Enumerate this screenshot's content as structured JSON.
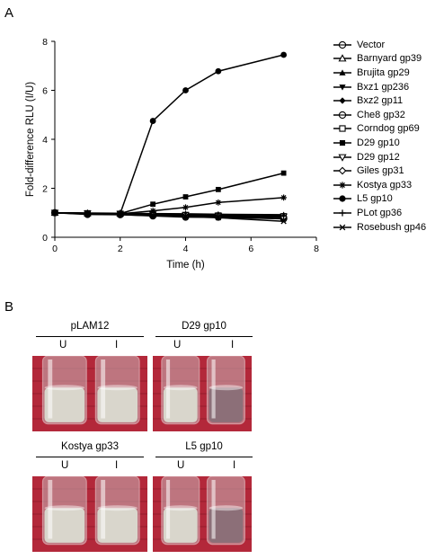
{
  "panel_a_label": "A",
  "panel_b_label": "B",
  "chart_data": {
    "type": "line",
    "title": "",
    "xlabel": "Time (h)",
    "ylabel": "Fold-difference RLU  (I/U)",
    "xlim": [
      0,
      8
    ],
    "ylim": [
      0,
      8
    ],
    "xticks": [
      0,
      2,
      4,
      6,
      8
    ],
    "yticks": [
      0,
      2,
      4,
      6,
      8
    ],
    "grid": false,
    "legend_position": "right",
    "x": [
      0,
      1,
      2,
      3,
      4,
      5,
      7
    ],
    "series": [
      {
        "name": "Vector",
        "marker": "open-circle",
        "values": [
          1.0,
          0.93,
          0.92,
          0.87,
          0.82,
          0.82,
          0.75
        ]
      },
      {
        "name": "Barnyard gp39",
        "marker": "open-triangle",
        "values": [
          1.0,
          0.98,
          0.97,
          0.95,
          0.92,
          0.9,
          0.87
        ]
      },
      {
        "name": "Brujita gp29",
        "marker": "filled-triangle",
        "values": [
          1.0,
          0.99,
          0.98,
          0.97,
          0.96,
          0.94,
          0.92
        ]
      },
      {
        "name": "Bxz1 gp236",
        "marker": "filled-triangle-down",
        "values": [
          1.0,
          0.97,
          0.95,
          0.92,
          0.9,
          0.88,
          0.85
        ]
      },
      {
        "name": "Bxz2 gp11",
        "marker": "filled-diamond",
        "values": [
          1.0,
          0.96,
          0.94,
          0.9,
          0.88,
          0.86,
          0.83
        ]
      },
      {
        "name": "Che8 gp32",
        "marker": "open-circle-bar",
        "values": [
          1.0,
          0.95,
          0.93,
          0.89,
          0.86,
          0.84,
          0.8
        ]
      },
      {
        "name": "Corndog gp69",
        "marker": "open-square",
        "values": [
          1.0,
          0.98,
          0.96,
          0.93,
          0.91,
          0.89,
          0.86
        ]
      },
      {
        "name": "D29 gp10",
        "marker": "filled-square",
        "values": [
          1.0,
          0.98,
          0.97,
          1.35,
          1.65,
          1.95,
          2.62
        ]
      },
      {
        "name": "D29 gp12",
        "marker": "open-triangle-down",
        "values": [
          1.0,
          0.97,
          0.96,
          0.93,
          0.91,
          0.88,
          0.85
        ]
      },
      {
        "name": "Giles gp31",
        "marker": "open-diamond",
        "values": [
          1.0,
          0.96,
          0.94,
          0.91,
          0.88,
          0.86,
          0.82
        ]
      },
      {
        "name": "Kostya gp33",
        "marker": "asterisk",
        "values": [
          1.0,
          0.98,
          0.96,
          1.08,
          1.22,
          1.42,
          1.62
        ]
      },
      {
        "name": "L5 gp10",
        "marker": "filled-circle",
        "values": [
          1.0,
          0.98,
          0.97,
          4.75,
          6.0,
          6.78,
          7.45
        ]
      },
      {
        "name": "PLot gp36",
        "marker": "plus",
        "values": [
          1.0,
          0.97,
          0.95,
          0.92,
          0.9,
          0.88,
          0.86
        ]
      },
      {
        "name": "Rosebush gp46",
        "marker": "cross",
        "values": [
          1.0,
          0.95,
          0.92,
          0.88,
          0.84,
          0.8,
          0.65
        ]
      }
    ]
  },
  "photos": [
    {
      "title": "pLAM12",
      "u_label": "U",
      "i_label": "I",
      "u_state": "turbid",
      "i_state": "turbid"
    },
    {
      "title": "D29 gp10",
      "u_label": "U",
      "i_label": "I",
      "u_state": "turbid",
      "i_state": "clear"
    },
    {
      "title": "Kostya gp33",
      "u_label": "U",
      "i_label": "I",
      "u_state": "turbid",
      "i_state": "turbid"
    },
    {
      "title": "L5 gp10",
      "u_label": "U",
      "i_label": "I",
      "u_state": "turbid",
      "i_state": "clear"
    }
  ],
  "colors": {
    "background": "#b3283a",
    "turbid": "#d9d6cc",
    "clear": "#8c6f78",
    "line": "#000000"
  }
}
